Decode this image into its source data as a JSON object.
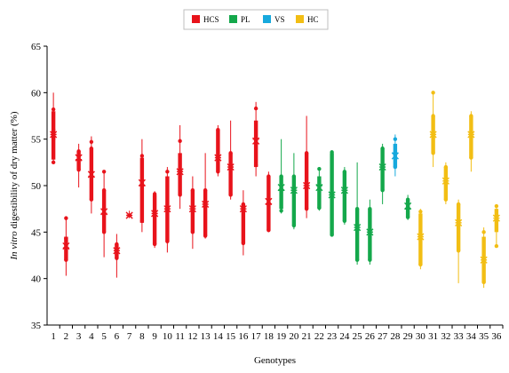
{
  "chart_data": {
    "type": "box",
    "xlabel": "Genotypes",
    "ylabel_italic": "In vitro",
    "ylabel_rest": " digestibility of dry matter (%)",
    "ylim": [
      35,
      65
    ],
    "yticks": [
      35,
      40,
      45,
      50,
      55,
      60,
      65
    ],
    "legend_position": "top-center",
    "groups": [
      {
        "name": "HCS",
        "color": "#e8131b"
      },
      {
        "name": "PL",
        "color": "#14a84b"
      },
      {
        "name": "VS",
        "color": "#17a9dd"
      },
      {
        "name": "HC",
        "color": "#f2be14"
      }
    ],
    "categories": [
      "1",
      "2",
      "3",
      "4",
      "5",
      "6",
      "7",
      "8",
      "9",
      "10",
      "11",
      "12",
      "13",
      "14",
      "15",
      "16",
      "17",
      "18",
      "19",
      "20",
      "21",
      "22",
      "23",
      "24",
      "25",
      "26",
      "27",
      "28",
      "29",
      "30",
      "31",
      "32",
      "33",
      "34",
      "35",
      "36"
    ],
    "series": [
      {
        "x": "1",
        "group": "HCS",
        "min": 52.5,
        "q1": 52.8,
        "median": 55.5,
        "q3": 58,
        "max": 60,
        "mean": 55.5,
        "points": [
          52.5,
          55,
          56,
          58.2
        ]
      },
      {
        "x": "2",
        "group": "HCS",
        "min": 40.3,
        "q1": 42,
        "median": 43.3,
        "q3": 44.5,
        "max": 46.5,
        "mean": 43.5,
        "points": [
          42,
          44.3,
          46.5
        ]
      },
      {
        "x": "3",
        "group": "HCS",
        "min": 49.8,
        "q1": 51.7,
        "median": 52.8,
        "q3": 53.7,
        "max": 54.5,
        "mean": 53,
        "points": [
          51.7,
          53.7
        ]
      },
      {
        "x": "4",
        "group": "HCS",
        "min": 47,
        "q1": 48.5,
        "median": 51,
        "q3": 54,
        "max": 55.3,
        "mean": 51.2,
        "points": [
          48.5,
          54,
          54.7
        ]
      },
      {
        "x": "5",
        "group": "HCS",
        "min": 42.3,
        "q1": 45,
        "median": 47,
        "q3": 49.5,
        "max": 51.5,
        "mean": 47.2,
        "points": [
          45,
          49.5,
          51.5
        ]
      },
      {
        "x": "6",
        "group": "HCS",
        "min": 40.1,
        "q1": 42.2,
        "median": 43,
        "q3": 43.7,
        "max": 44.8,
        "mean": 43,
        "points": [
          42.2,
          43.7
        ]
      },
      {
        "x": "7",
        "group": "HCS",
        "min": 46.5,
        "q1": 46.6,
        "median": 46.8,
        "q3": 47,
        "max": 47.3,
        "mean": 46.8,
        "points": []
      },
      {
        "x": "8",
        "group": "HCS",
        "min": 45,
        "q1": 46,
        "median": 50,
        "q3": 53,
        "max": 55,
        "mean": 50.3,
        "points": [
          46.2,
          53.2
        ]
      },
      {
        "x": "9",
        "group": "HCS",
        "min": 43.3,
        "q1": 43.7,
        "median": 47,
        "q3": 49,
        "max": 49.4,
        "mean": 47,
        "points": [
          43.7,
          49.1
        ]
      },
      {
        "x": "10",
        "group": "HCS",
        "min": 42.8,
        "q1": 44,
        "median": 47.5,
        "q3": 51,
        "max": 52,
        "mean": 47.5,
        "points": [
          44,
          51.5
        ]
      },
      {
        "x": "11",
        "group": "HCS",
        "min": 47.5,
        "q1": 49,
        "median": 51.5,
        "q3": 53.5,
        "max": 56.5,
        "mean": 51.5,
        "points": [
          49,
          54.8
        ]
      },
      {
        "x": "12",
        "group": "HCS",
        "min": 43.2,
        "q1": 45,
        "median": 47.5,
        "q3": 49.5,
        "max": 51,
        "mean": 47.5,
        "points": [
          45,
          49.5
        ]
      },
      {
        "x": "13",
        "group": "HCS",
        "min": 44.3,
        "q1": 44.6,
        "median": 48,
        "q3": 49.5,
        "max": 53.5,
        "mean": 48,
        "points": [
          44.6,
          49.5
        ]
      },
      {
        "x": "14",
        "group": "HCS",
        "min": 51,
        "q1": 51.5,
        "median": 53,
        "q3": 56,
        "max": 56.5,
        "mean": 53,
        "points": [
          51.5,
          56
        ]
      },
      {
        "x": "15",
        "group": "HCS",
        "min": 48.5,
        "q1": 49,
        "median": 52,
        "q3": 53.5,
        "max": 57,
        "mean": 52,
        "points": [
          49,
          53.5
        ]
      },
      {
        "x": "16",
        "group": "HCS",
        "min": 42.5,
        "q1": 43.8,
        "median": 47.5,
        "q3": 48,
        "max": 49.5,
        "mean": 47.5,
        "points": [
          43.8,
          48
        ]
      },
      {
        "x": "17",
        "group": "HCS",
        "min": 51,
        "q1": 52,
        "median": 55,
        "q3": 57,
        "max": 59,
        "mean": 54.8,
        "points": [
          52.2,
          58.3
        ]
      },
      {
        "x": "18",
        "group": "HCS",
        "min": 45,
        "q1": 45.2,
        "median": 48,
        "q3": 51,
        "max": 51.5,
        "mean": 48.3,
        "points": [
          45.2,
          51
        ]
      },
      {
        "x": "19",
        "group": "PL",
        "min": 47,
        "q1": 47.5,
        "median": 49.5,
        "q3": 51,
        "max": 55,
        "mean": 49.8,
        "points": [
          47.3,
          51
        ]
      },
      {
        "x": "20",
        "group": "PL",
        "min": 45.3,
        "q1": 45.7,
        "median": 49.5,
        "q3": 51,
        "max": 53.5,
        "mean": 49.5,
        "points": [
          45.7,
          51
        ]
      },
      {
        "x": "21",
        "group": "HCS",
        "min": 46.5,
        "q1": 47.5,
        "median": 50,
        "q3": 53.5,
        "max": 57.5,
        "mean": 50,
        "points": [
          47.5,
          53.5
        ]
      },
      {
        "x": "22",
        "group": "PL",
        "min": 47.3,
        "q1": 47.6,
        "median": 50,
        "q3": 51,
        "max": 52,
        "mean": 49.8,
        "points": [
          47.6,
          51.8
        ]
      },
      {
        "x": "23",
        "group": "PL",
        "min": 44.5,
        "q1": 44.7,
        "median": 49,
        "q3": 53.5,
        "max": 53.8,
        "mean": 49,
        "points": [
          44.7,
          53.6
        ]
      },
      {
        "x": "24",
        "group": "PL",
        "min": 45.8,
        "q1": 46.2,
        "median": 49.5,
        "q3": 51.5,
        "max": 52,
        "mean": 49.5,
        "points": [
          46.2,
          51.5
        ]
      },
      {
        "x": "25",
        "group": "PL",
        "min": 41.5,
        "q1": 42,
        "median": 45.5,
        "q3": 47.5,
        "max": 52.5,
        "mean": 45.5,
        "points": [
          42,
          47.5
        ]
      },
      {
        "x": "26",
        "group": "PL",
        "min": 41.5,
        "q1": 42,
        "median": 45,
        "q3": 47.5,
        "max": 48.5,
        "mean": 45,
        "points": [
          42,
          47.5
        ]
      },
      {
        "x": "27",
        "group": "PL",
        "min": 48,
        "q1": 49.5,
        "median": 52,
        "q3": 54,
        "max": 54.5,
        "mean": 52,
        "points": [
          49.5,
          54
        ]
      },
      {
        "x": "28",
        "group": "VS",
        "min": 51,
        "q1": 52,
        "median": 53.5,
        "q3": 54.5,
        "max": 55.5,
        "mean": 53.2,
        "points": [
          52,
          55
        ]
      },
      {
        "x": "29",
        "group": "PL",
        "min": 46.3,
        "q1": 46.6,
        "median": 47.5,
        "q3": 48.5,
        "max": 49,
        "mean": 47.8,
        "points": [
          46.6,
          48.5
        ]
      },
      {
        "x": "30",
        "group": "HC",
        "min": 41,
        "q1": 41.5,
        "median": 44.5,
        "q3": 47,
        "max": 47.5,
        "mean": 44.5,
        "points": [
          41.5,
          47.2
        ]
      },
      {
        "x": "31",
        "group": "HC",
        "min": 52,
        "q1": 53.5,
        "median": 55.5,
        "q3": 57.5,
        "max": 60,
        "mean": 55.5,
        "points": [
          53.5,
          57.5,
          60
        ]
      },
      {
        "x": "32",
        "group": "HC",
        "min": 48,
        "q1": 48.5,
        "median": 50.5,
        "q3": 52,
        "max": 52.5,
        "mean": 50.5,
        "points": [
          48.5,
          52
        ]
      },
      {
        "x": "33",
        "group": "HC",
        "min": 39.5,
        "q1": 43,
        "median": 46,
        "q3": 48,
        "max": 48.5,
        "mean": 46,
        "points": [
          43,
          48
        ]
      },
      {
        "x": "34",
        "group": "HC",
        "min": 51.5,
        "q1": 53,
        "median": 55.5,
        "q3": 57.5,
        "max": 58,
        "mean": 55.5,
        "points": [
          53,
          57.5
        ]
      },
      {
        "x": "35",
        "group": "HC",
        "min": 39,
        "q1": 39.6,
        "median": 42,
        "q3": 44.5,
        "max": 45.5,
        "mean": 42,
        "points": [
          39.6,
          45
        ]
      },
      {
        "x": "36",
        "group": "HC",
        "min": 43.5,
        "q1": 45,
        "median": 46.5,
        "q3": 47.5,
        "max": 48,
        "mean": 46.5,
        "points": [
          43.5,
          47.8
        ]
      }
    ]
  }
}
